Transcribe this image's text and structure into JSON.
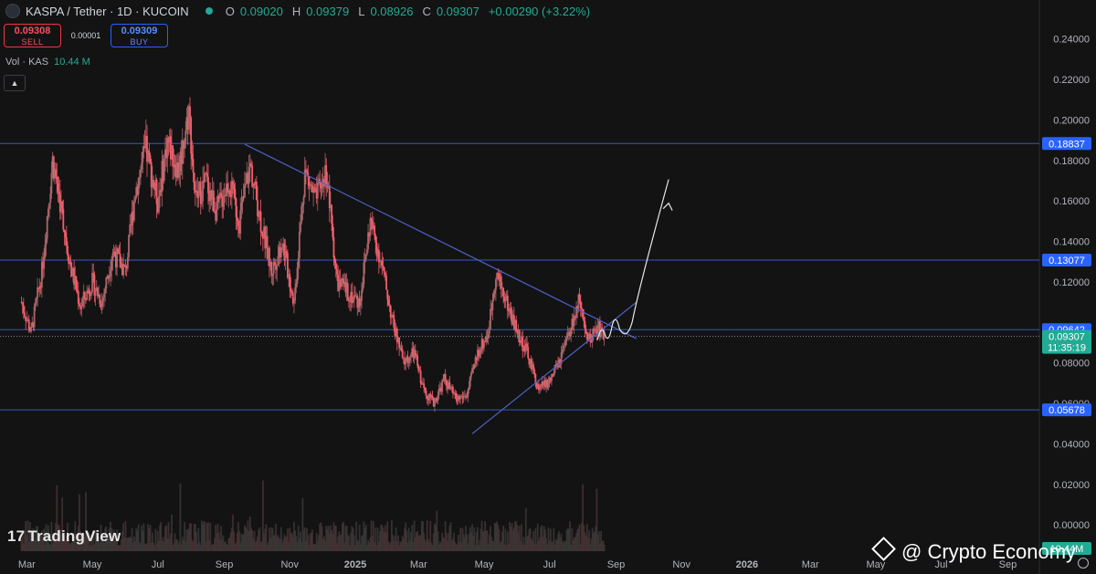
{
  "header": {
    "symbol": "KASPA / Tether · 1D · KUCOIN",
    "o_label": "O",
    "o_value": "0.09020",
    "h_label": "H",
    "h_value": "0.09379",
    "l_label": "L",
    "l_value": "0.08926",
    "c_label": "C",
    "c_value": "0.09307",
    "change": "+0.00290 (+3.22%)"
  },
  "trade": {
    "sell_price": "0.09308",
    "sell_label": "SELL",
    "spread": "0.00001",
    "buy_price": "0.09309",
    "buy_label": "BUY"
  },
  "volume": {
    "label": "Vol · KAS",
    "value": "10.44 M",
    "axis_label": "10.44M"
  },
  "collapse_icon": "chevron-up-icon",
  "branding": {
    "tradingview": "TradingView",
    "watermark": "@ Crypto Economy"
  },
  "colors": {
    "background": "#131313",
    "up": "#22ab94",
    "down": "#f23645",
    "candle_up": "#a8676b",
    "candle_down": "#f35d6a",
    "level_line": "#3b55c7",
    "trendline": "#4c62c8",
    "label_blue": "#2962ff"
  },
  "chart_data": {
    "type": "candlestick",
    "y_axis": {
      "ticks": [
        "0.24000",
        "0.22000",
        "0.20000",
        "0.18000",
        "0.16000",
        "0.14000",
        "0.12000",
        "0.08000",
        "0.06000",
        "0.04000",
        "0.02000",
        "0.00000"
      ],
      "ylim": [
        -0.004,
        0.248
      ]
    },
    "x_axis": {
      "ticks": [
        "Mar",
        "May",
        "Jul",
        "Sep",
        "Nov",
        "2025",
        "Mar",
        "May",
        "Jul",
        "Sep",
        "Nov",
        "2026",
        "Mar",
        "May",
        "Jul",
        "Sep"
      ]
    },
    "horizontal_levels": [
      {
        "value": 0.18837,
        "label": "0.18837"
      },
      {
        "value": 0.13077,
        "label": "0.13077"
      },
      {
        "value": 0.09642,
        "label": "0.09642"
      },
      {
        "value": 0.05678,
        "label": "0.05678"
      }
    ],
    "current_price": {
      "value": 0.09307,
      "label": "0.09307",
      "countdown": "11:35:19"
    },
    "price_path": [
      [
        "2024-02-25",
        0.11
      ],
      [
        "2024-03-05",
        0.095
      ],
      [
        "2024-03-15",
        0.125
      ],
      [
        "2024-03-25",
        0.18
      ],
      [
        "2024-04-01",
        0.16
      ],
      [
        "2024-04-10",
        0.13
      ],
      [
        "2024-04-20",
        0.108
      ],
      [
        "2024-05-01",
        0.12
      ],
      [
        "2024-05-10",
        0.11
      ],
      [
        "2024-05-20",
        0.135
      ],
      [
        "2024-06-01",
        0.125
      ],
      [
        "2024-06-10",
        0.165
      ],
      [
        "2024-06-20",
        0.185
      ],
      [
        "2024-07-01",
        0.16
      ],
      [
        "2024-07-10",
        0.19
      ],
      [
        "2024-07-20",
        0.175
      ],
      [
        "2024-07-30",
        0.205
      ],
      [
        "2024-08-05",
        0.16
      ],
      [
        "2024-08-15",
        0.17
      ],
      [
        "2024-08-25",
        0.155
      ],
      [
        "2024-09-05",
        0.17
      ],
      [
        "2024-09-15",
        0.15
      ],
      [
        "2024-09-25",
        0.178
      ],
      [
        "2024-10-05",
        0.15
      ],
      [
        "2024-10-15",
        0.125
      ],
      [
        "2024-10-25",
        0.14
      ],
      [
        "2024-11-05",
        0.11
      ],
      [
        "2024-11-15",
        0.175
      ],
      [
        "2024-11-25",
        0.16
      ],
      [
        "2024-12-05",
        0.175
      ],
      [
        "2024-12-15",
        0.12
      ],
      [
        "2024-12-25",
        0.115
      ],
      [
        "2025-01-05",
        0.11
      ],
      [
        "2025-01-15",
        0.15
      ],
      [
        "2025-01-25",
        0.13
      ],
      [
        "2025-02-05",
        0.1
      ],
      [
        "2025-02-15",
        0.08
      ],
      [
        "2025-02-25",
        0.085
      ],
      [
        "2025-03-05",
        0.068
      ],
      [
        "2025-03-15",
        0.06
      ],
      [
        "2025-03-25",
        0.072
      ],
      [
        "2025-04-05",
        0.062
      ],
      [
        "2025-04-15",
        0.064
      ],
      [
        "2025-04-25",
        0.085
      ],
      [
        "2025-05-05",
        0.095
      ],
      [
        "2025-05-12",
        0.125
      ],
      [
        "2025-05-22",
        0.11
      ],
      [
        "2025-06-01",
        0.095
      ],
      [
        "2025-06-10",
        0.085
      ],
      [
        "2025-06-20",
        0.068
      ],
      [
        "2025-06-30",
        0.07
      ],
      [
        "2025-07-10",
        0.08
      ],
      [
        "2025-07-20",
        0.095
      ],
      [
        "2025-07-28",
        0.11
      ],
      [
        "2025-08-05",
        0.09
      ],
      [
        "2025-08-15",
        0.098
      ],
      [
        "2025-08-22",
        0.093
      ]
    ],
    "trendlines": [
      {
        "from": [
          "2024-09-20",
          0.188
        ],
        "to": [
          "2025-09-20",
          0.092
        ]
      },
      {
        "from": [
          "2025-04-20",
          0.045
        ],
        "to": [
          "2025-09-20",
          0.11
        ]
      }
    ],
    "projection_arrow": {
      "from": [
        "2025-08-25",
        0.095
      ],
      "to": [
        "2025-10-20",
        0.158
      ]
    }
  }
}
